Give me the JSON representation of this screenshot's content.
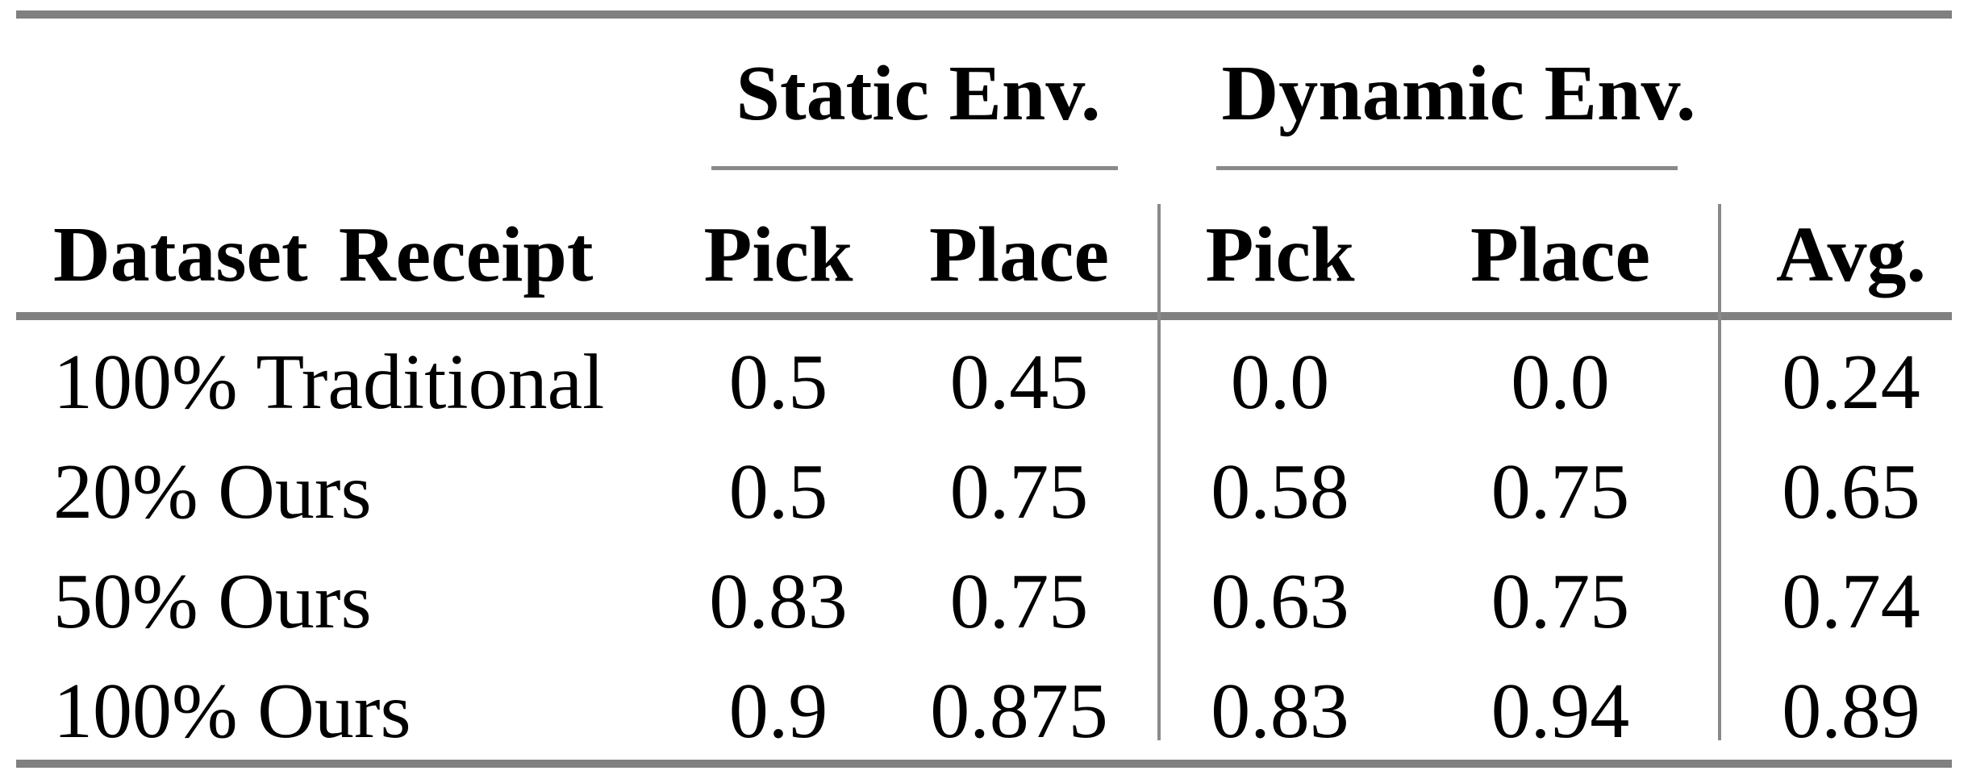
{
  "page": {
    "background": "#ffffff"
  },
  "colors": {
    "thick_rule_gray": "#808080",
    "thin_rule_gray": "#8a8a8a",
    "text": "#000000"
  },
  "table": {
    "group_headers": {
      "static": "Static Env.",
      "dynamic": "Dynamic Env."
    },
    "column_headers": {
      "dataset": "Dataset Receipt",
      "static_pick": "Pick",
      "static_place": "Place",
      "dynamic_pick": "Pick",
      "dynamic_place": "Place",
      "avg": "Avg."
    },
    "rows": [
      {
        "label": "100% Traditional",
        "values": [
          "0.5",
          "0.45",
          "0.0",
          "0.0",
          "0.24"
        ]
      },
      {
        "label": "20% Ours",
        "values": [
          "0.5",
          "0.75",
          "0.58",
          "0.75",
          "0.65"
        ]
      },
      {
        "label": "50% Ours",
        "values": [
          "0.83",
          "0.75",
          "0.63",
          "0.75",
          "0.74"
        ]
      },
      {
        "label": "100% Ours",
        "values": [
          "0.9",
          "0.875",
          "0.83",
          "0.94",
          "0.89"
        ]
      }
    ]
  },
  "chart_data": {
    "type": "table",
    "columns": [
      "Dataset Receipt",
      "Static Env. Pick",
      "Static Env. Place",
      "Dynamic Env. Pick",
      "Dynamic Env. Place",
      "Avg."
    ],
    "rows": [
      [
        "100% Traditional",
        0.5,
        0.45,
        0.0,
        0.0,
        0.24
      ],
      [
        "20% Ours",
        0.5,
        0.75,
        0.58,
        0.75,
        0.65
      ],
      [
        "50% Ours",
        0.83,
        0.75,
        0.63,
        0.75,
        0.74
      ],
      [
        "100% Ours",
        0.9,
        0.875,
        0.83,
        0.94,
        0.89
      ]
    ]
  }
}
